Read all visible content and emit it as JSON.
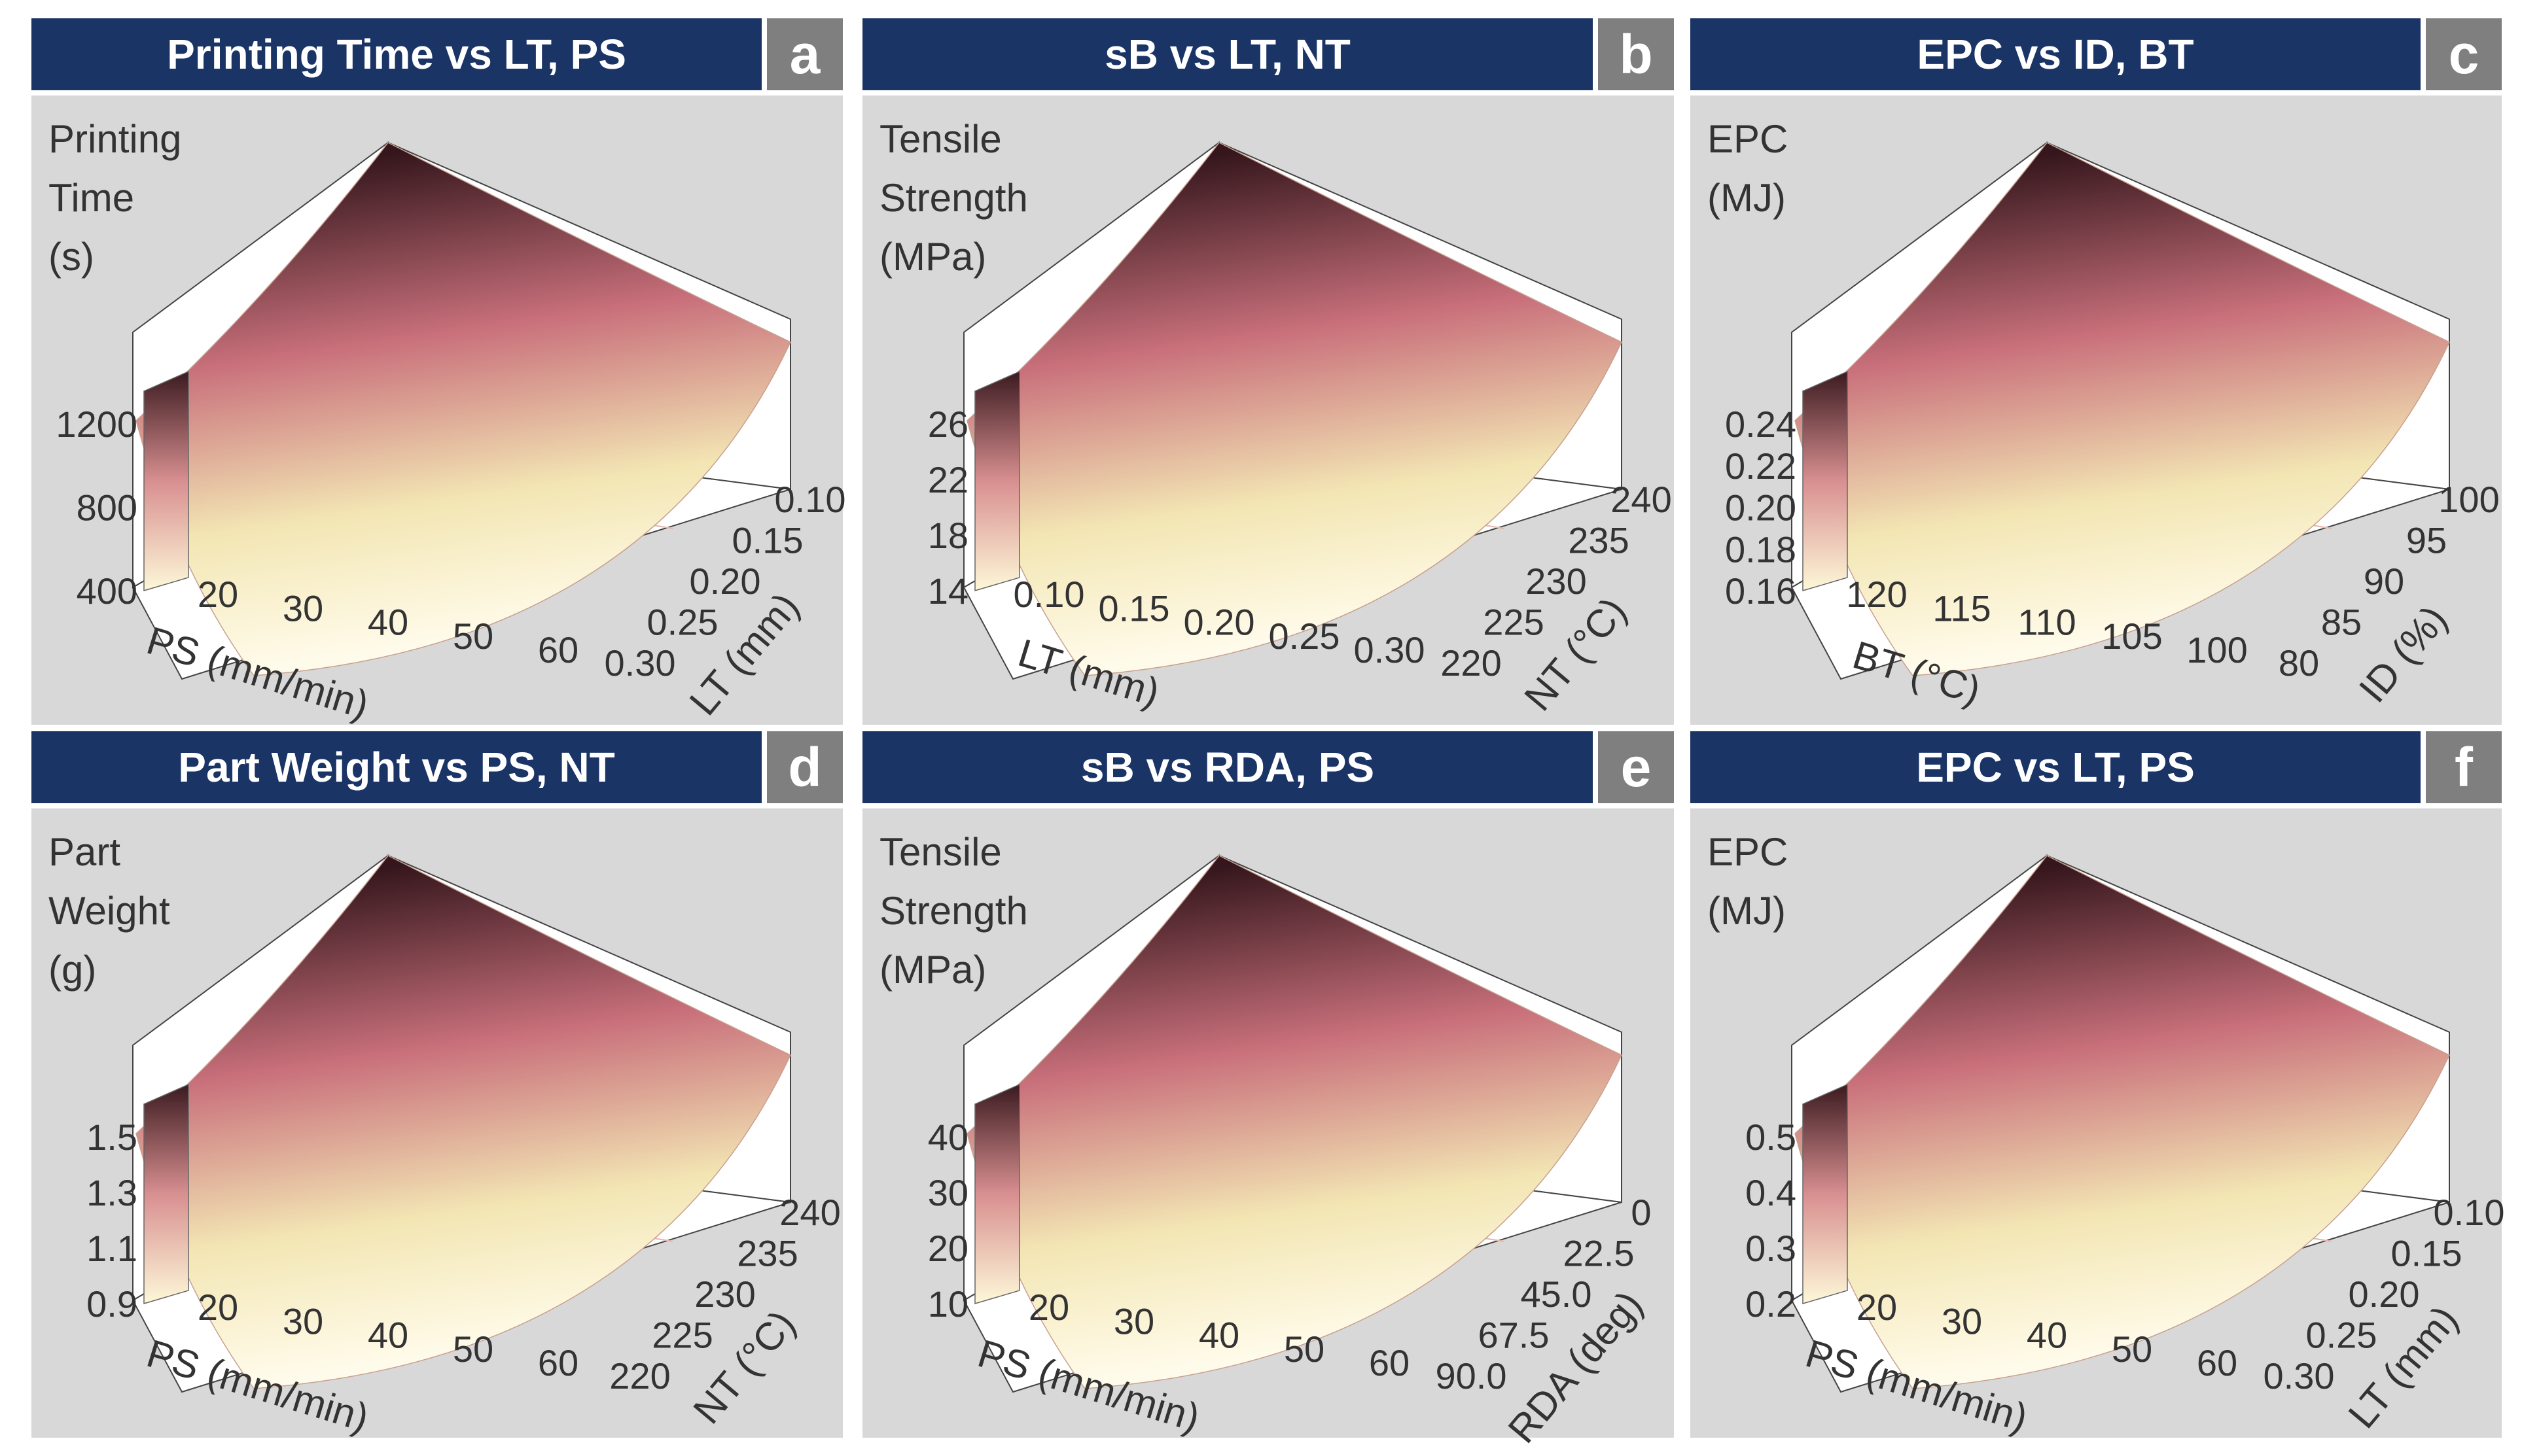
{
  "panels": [
    {
      "title": "Printing Time vs LT, PS",
      "letter": "a",
      "zlabel": [
        "Printing",
        "Time",
        "(s)"
      ],
      "chart_data": {
        "type": "surface",
        "z_ticks": [
          "1200",
          "800",
          "400"
        ],
        "left_axis": {
          "label": "PS (mm/min)",
          "ticks": [
            "20",
            "30",
            "40",
            "50",
            "60"
          ]
        },
        "right_axis": {
          "label": "LT (mm)",
          "ticks": [
            "0.30",
            "0.25",
            "0.20",
            "0.15",
            "0.10"
          ]
        }
      }
    },
    {
      "title": "sB vs LT, NT",
      "letter": "b",
      "zlabel": [
        "Tensile",
        "Strength",
        "(MPa)"
      ],
      "chart_data": {
        "type": "surface",
        "z_ticks": [
          "26",
          "22",
          "18",
          "14"
        ],
        "left_axis": {
          "label": "LT (mm)",
          "ticks": [
            "0.10",
            "0.15",
            "0.20",
            "0.25",
            "0.30"
          ]
        },
        "right_axis": {
          "label": "NT (°C)",
          "ticks": [
            "220",
            "225",
            "230",
            "235",
            "240"
          ]
        }
      }
    },
    {
      "title": "EPC vs ID, BT",
      "letter": "c",
      "zlabel": [
        "EPC",
        "(MJ)"
      ],
      "chart_data": {
        "type": "surface",
        "z_ticks": [
          "0.24",
          "0.22",
          "0.20",
          "0.18",
          "0.16"
        ],
        "left_axis": {
          "label": "BT (°C)",
          "ticks": [
            "120",
            "115",
            "110",
            "105",
            "100"
          ]
        },
        "right_axis": {
          "label": "ID (%)",
          "ticks": [
            "80",
            "85",
            "90",
            "95",
            "100"
          ]
        }
      }
    },
    {
      "title": "Part Weight vs PS, NT",
      "letter": "d",
      "zlabel": [
        "Part",
        "Weight",
        "(g)"
      ],
      "chart_data": {
        "type": "surface",
        "z_ticks": [
          "1.5",
          "1.3",
          "1.1",
          "0.9"
        ],
        "left_axis": {
          "label": "PS (mm/min)",
          "ticks": [
            "20",
            "30",
            "40",
            "50",
            "60"
          ]
        },
        "right_axis": {
          "label": "NT (°C)",
          "ticks": [
            "220",
            "225",
            "230",
            "235",
            "240"
          ]
        }
      }
    },
    {
      "title": "sB vs RDA, PS",
      "letter": "e",
      "zlabel": [
        "Tensile",
        "Strength",
        "(MPa)"
      ],
      "chart_data": {
        "type": "surface",
        "z_ticks": [
          "40",
          "30",
          "20",
          "10"
        ],
        "left_axis": {
          "label": "PS (mm/min)",
          "ticks": [
            "20",
            "30",
            "40",
            "50",
            "60"
          ]
        },
        "right_axis": {
          "label": "RDA (deg)",
          "ticks": [
            "90.0",
            "67.5",
            "45.0",
            "22.5",
            "0"
          ]
        }
      }
    },
    {
      "title": "EPC vs LT, PS",
      "letter": "f",
      "zlabel": [
        "EPC",
        "(MJ)"
      ],
      "chart_data": {
        "type": "surface",
        "z_ticks": [
          "0.5",
          "0.4",
          "0.3",
          "0.2"
        ],
        "left_axis": {
          "label": "PS (mm/min)",
          "ticks": [
            "20",
            "30",
            "40",
            "50",
            "60"
          ]
        },
        "right_axis": {
          "label": "LT (mm)",
          "ticks": [
            "0.30",
            "0.25",
            "0.20",
            "0.15",
            "0.10"
          ]
        }
      }
    }
  ],
  "colors": {
    "header_bg": "#1a3466",
    "letter_bg": "#7f7f7f",
    "panel_bg": "#d8d8d8",
    "surface_low": "#fffbea",
    "surface_mid": "#c9707b",
    "surface_high": "#35161c"
  }
}
